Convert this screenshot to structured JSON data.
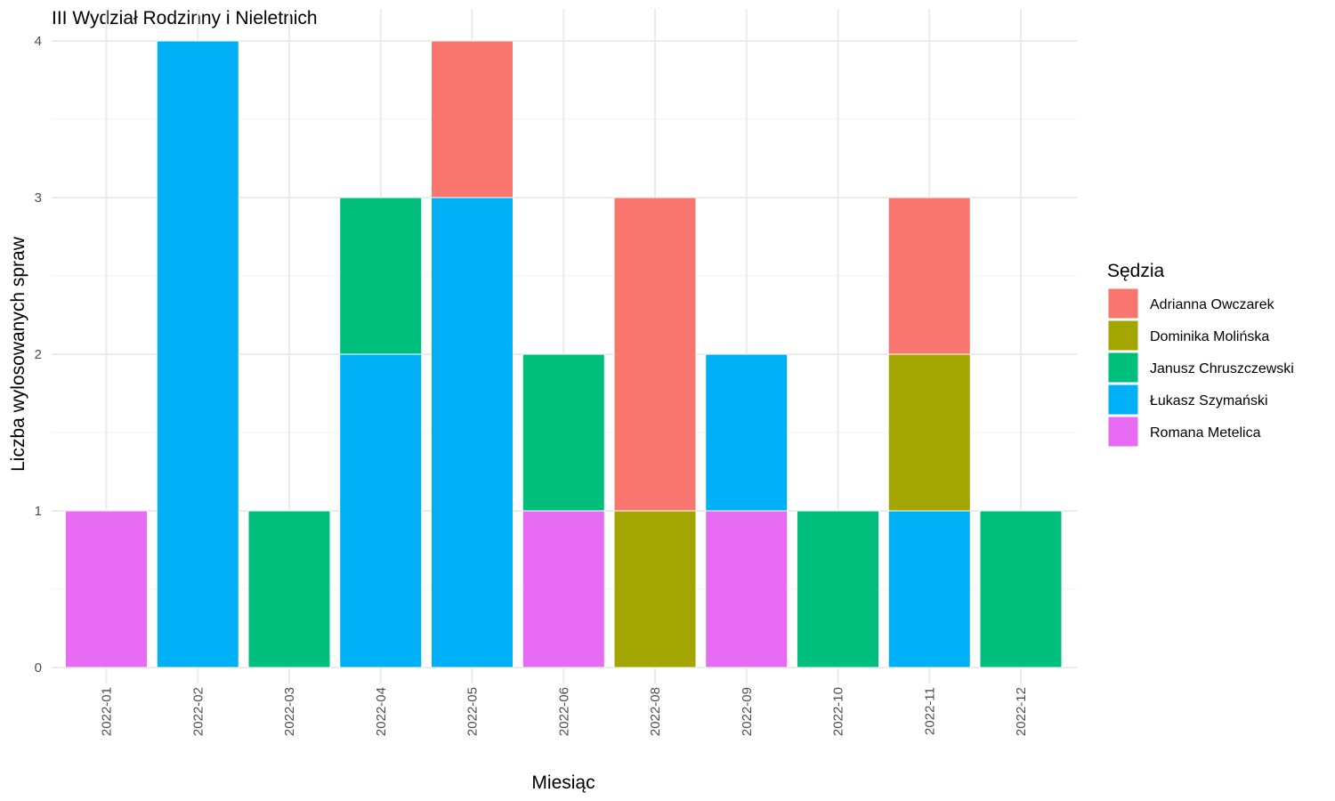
{
  "chart_data": {
    "type": "bar",
    "stacked": true,
    "title": "III Wydział Rodzinny i Nieletnich",
    "xlabel": "Miesiąc",
    "ylabel": "Liczba wylosowanych spraw",
    "ylim": [
      0,
      4
    ],
    "yticks": [
      0,
      1,
      2,
      3,
      4
    ],
    "grid": true,
    "legend_position": "right",
    "legend_title": "Sędzia",
    "categories": [
      "2022-01",
      "2022-02",
      "2022-03",
      "2022-04",
      "2022-05",
      "2022-06",
      "2022-08",
      "2022-09",
      "2022-10",
      "2022-11",
      "2022-12"
    ],
    "series": [
      {
        "name": "Romana Metelica",
        "color": "#E76BF3",
        "values": [
          1,
          0,
          0,
          0,
          0,
          1,
          0,
          1,
          0,
          0,
          0
        ]
      },
      {
        "name": "Łukasz Szymański",
        "color": "#00B0F6",
        "values": [
          0,
          4,
          0,
          2,
          3,
          0,
          0,
          1,
          0,
          1,
          0
        ]
      },
      {
        "name": "Janusz Chruszczewski",
        "color": "#00BF7D",
        "values": [
          0,
          0,
          1,
          1,
          0,
          1,
          0,
          0,
          1,
          0,
          1
        ]
      },
      {
        "name": "Dominika Molińska",
        "color": "#A3A500",
        "values": [
          0,
          0,
          0,
          0,
          0,
          0,
          1,
          0,
          0,
          1,
          0
        ]
      },
      {
        "name": "Adrianna Owczarek",
        "color": "#F8766D",
        "values": [
          0,
          0,
          0,
          0,
          1,
          0,
          2,
          0,
          0,
          1,
          0
        ]
      }
    ],
    "legend_order": [
      "Adrianna Owczarek",
      "Dominika Molińska",
      "Janusz Chruszczewski",
      "Łukasz Szymański",
      "Romana Metelica"
    ]
  }
}
